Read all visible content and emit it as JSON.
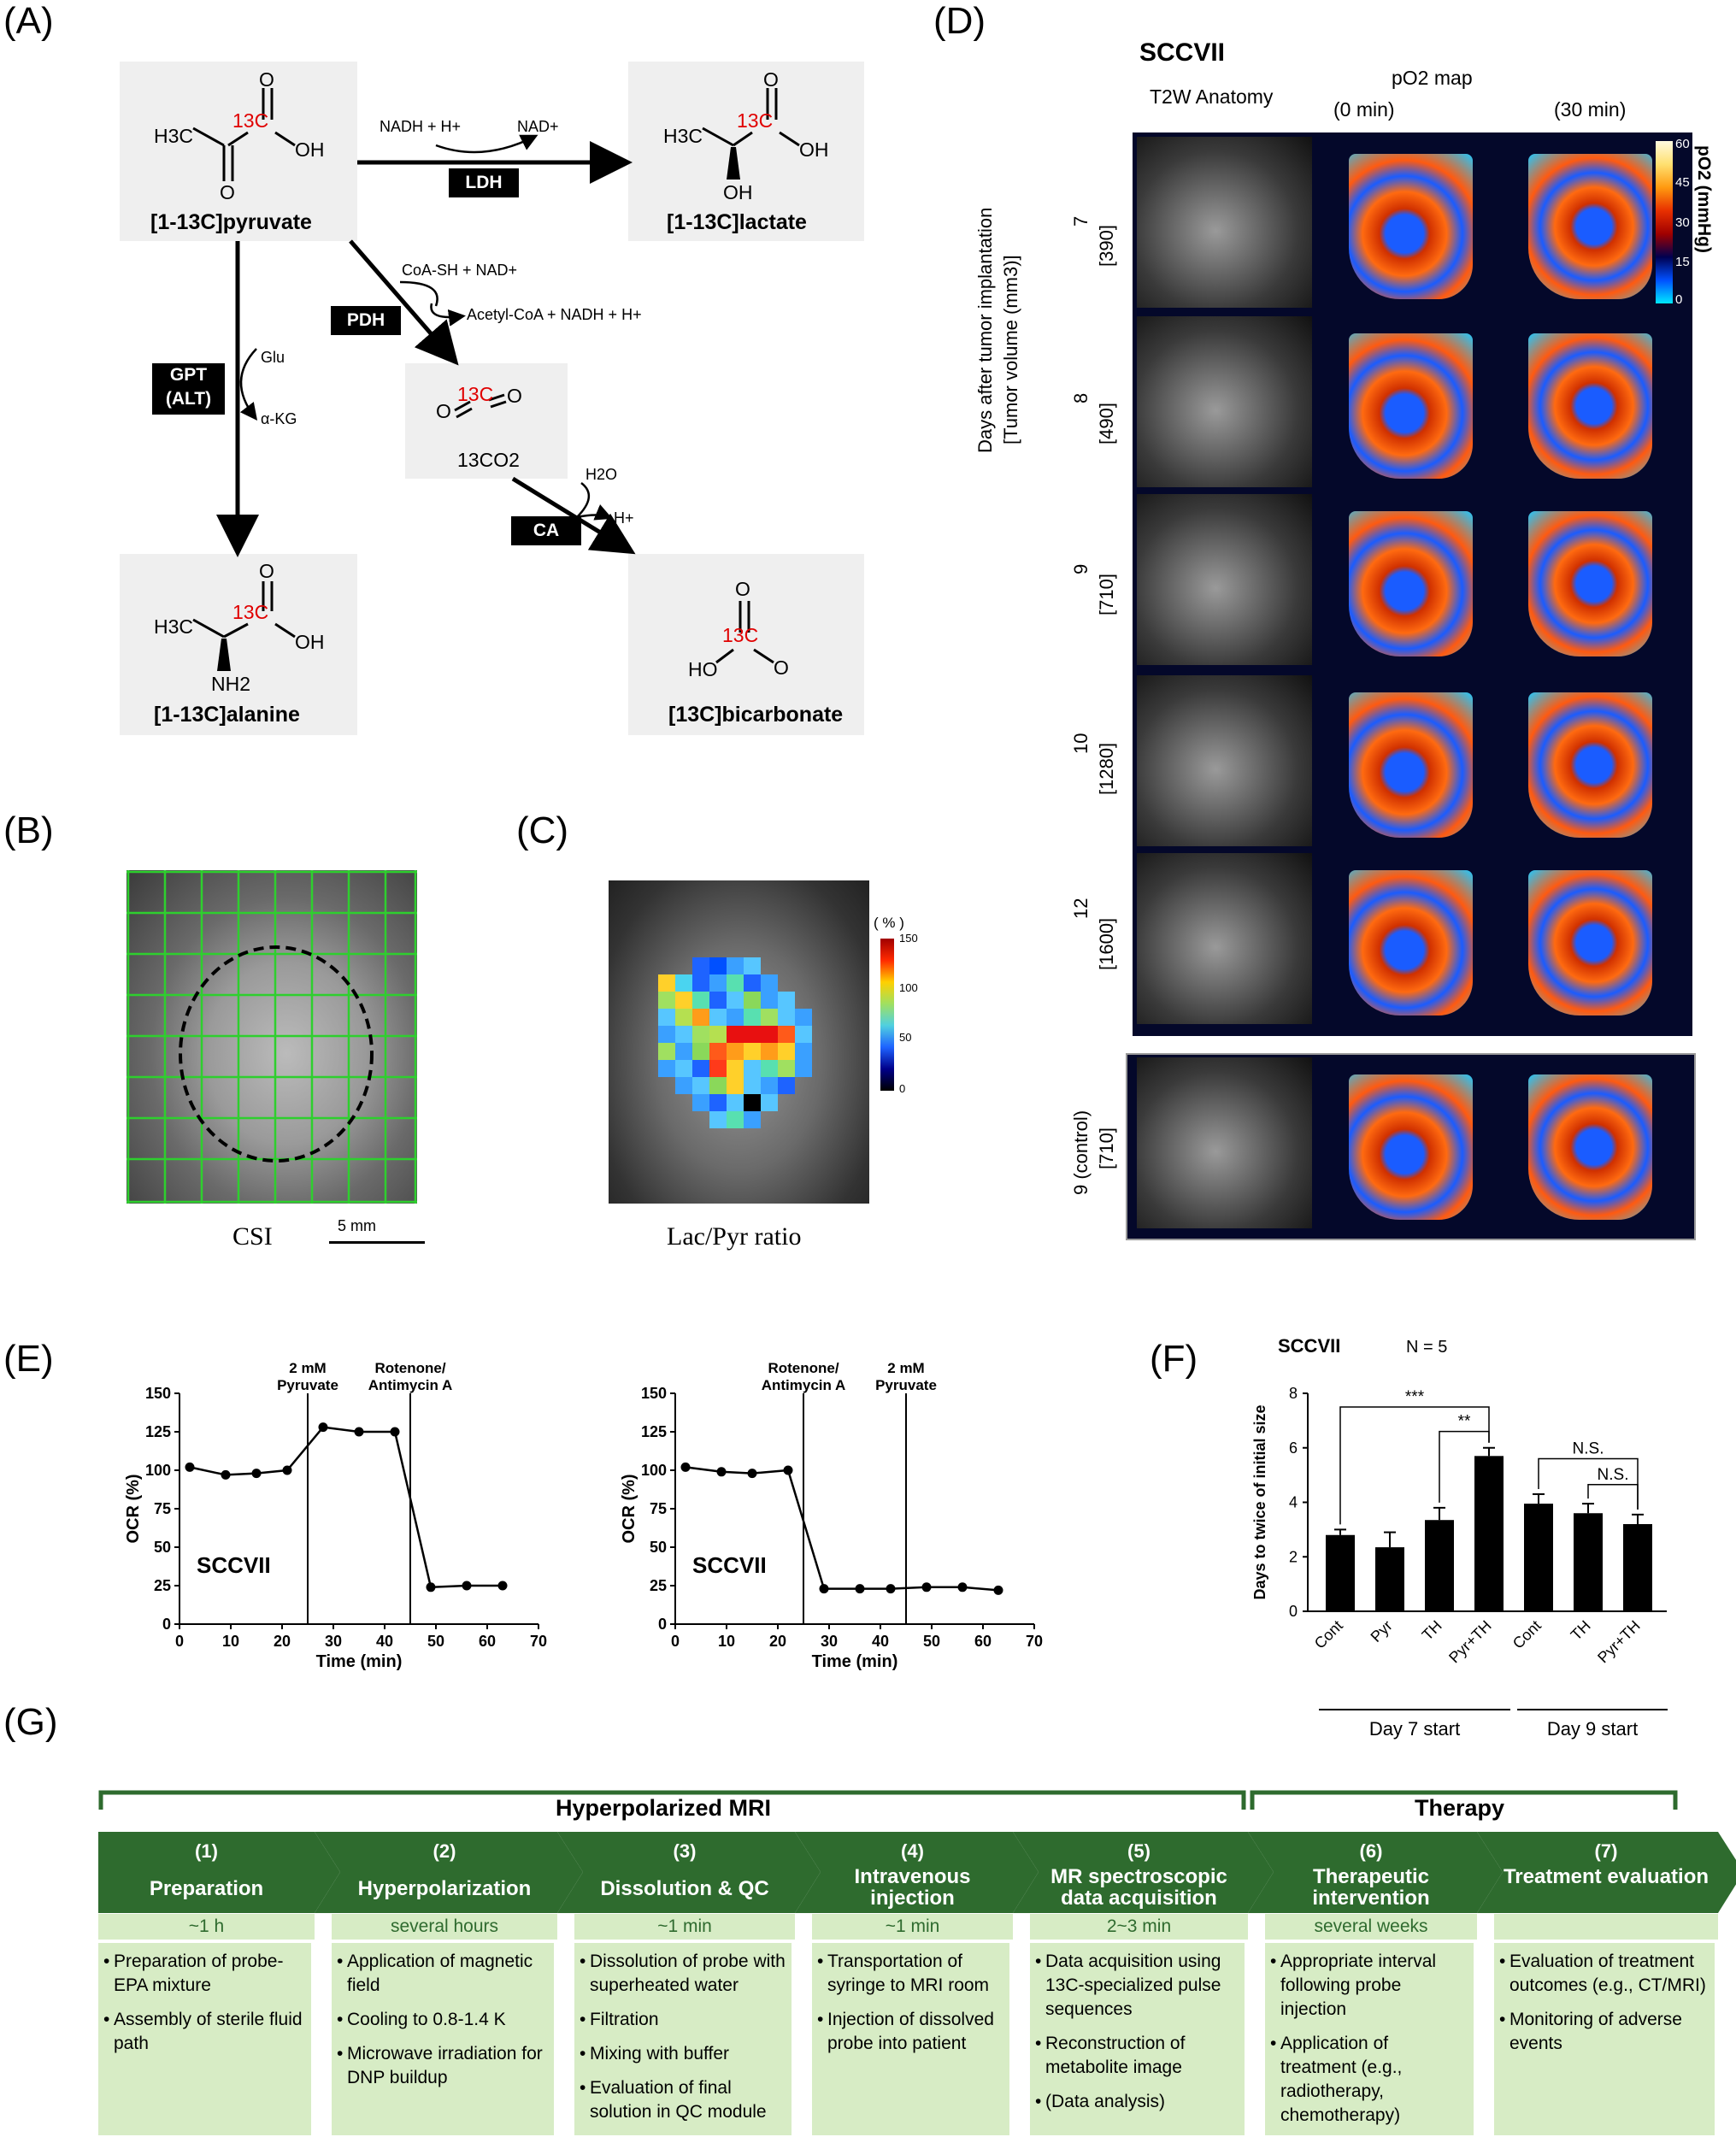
{
  "panels": {
    "a": "(A)",
    "b": "(B)",
    "c": "(C)",
    "d": "(D)",
    "e": "(E)",
    "f": "(F)",
    "g": "(G)"
  },
  "panel_a": {
    "pyruvate": "[1-13C]pyruvate",
    "lactate": "[1-13C]lactate",
    "alanine": "[1-13C]alanine",
    "bicarbonate": "[13C]bicarbonate",
    "co2": "13CO2",
    "ldh": "LDH",
    "pdh": "PDH",
    "gpt": "GPT",
    "alt": "(ALT)",
    "ca": "CA",
    "nadh_h": "NADH + H+",
    "nad": "NAD+",
    "coa": "CoA-SH + NAD+",
    "acetyl": "Acetyl-CoA + NADH + H+",
    "glu": "Glu",
    "akg": "α-KG",
    "h2o": "H2O",
    "hplus": "H+",
    "h3c": "H3C",
    "oh": "OH",
    "o": "O",
    "c13": "13C",
    "nh2": "NH2",
    "ho": "HO"
  },
  "panel_b": {
    "caption": "CSI",
    "scale": "5 mm"
  },
  "panel_c": {
    "caption": "Lac/Pyr ratio",
    "unit": "( % )",
    "ticks": [
      "150",
      "100",
      "50",
      "0"
    ]
  },
  "panel_d": {
    "title": "SCCVII",
    "col_anatomy": "T2W Anatomy",
    "col_po2": "pO2 map",
    "col_t0": "(0 min)",
    "col_t30": "(30 min)",
    "y_axis_1": "Days after tumor implantation",
    "y_axis_2": "[Tumor volume (mm3)]",
    "colorbar_label": "pO2 (mmHg)",
    "colorbar_ticks": [
      "60",
      "45",
      "30",
      "15",
      "0"
    ],
    "rows": [
      {
        "day": "7",
        "vol": "[390]"
      },
      {
        "day": "8",
        "vol": "[490]"
      },
      {
        "day": "9",
        "vol": "[710]"
      },
      {
        "day": "10",
        "vol": "[1280]"
      },
      {
        "day": "12",
        "vol": "[1600]"
      },
      {
        "day": "9 (control)",
        "vol": "[710]"
      }
    ]
  },
  "chart_data": [
    {
      "type": "line",
      "title": "SCCVII",
      "xlabel": "Time (min)",
      "ylabel": "OCR (%)",
      "xlim": [
        0,
        70
      ],
      "ylim": [
        0,
        150
      ],
      "xticks": [
        "0",
        "10",
        "20",
        "30",
        "40",
        "50",
        "60",
        "70"
      ],
      "yticks": [
        "0",
        "25",
        "50",
        "75",
        "100",
        "125",
        "150"
      ],
      "annotations": [
        {
          "x": 25,
          "text": "2 mM Pyruvate"
        },
        {
          "x": 45,
          "text": "Rotenone/ Antimycin A"
        }
      ],
      "series": [
        {
          "x": [
            2,
            9,
            15,
            21,
            28,
            35,
            42,
            49,
            56,
            63
          ],
          "y": [
            102,
            97,
            98,
            100,
            128,
            125,
            125,
            24,
            25,
            25
          ]
        }
      ]
    },
    {
      "type": "line",
      "title": "SCCVII",
      "xlabel": "Time (min)",
      "ylabel": "OCR (%)",
      "xlim": [
        0,
        70
      ],
      "ylim": [
        0,
        150
      ],
      "xticks": [
        "0",
        "10",
        "20",
        "30",
        "40",
        "50",
        "60",
        "70"
      ],
      "yticks": [
        "0",
        "25",
        "50",
        "75",
        "100",
        "125",
        "150"
      ],
      "annotations": [
        {
          "x": 25,
          "text": "Rotenone/ Antimycin A"
        },
        {
          "x": 45,
          "text": "2 mM Pyruvate"
        }
      ],
      "series": [
        {
          "x": [
            2,
            9,
            15,
            22,
            29,
            36,
            42,
            49,
            56,
            63
          ],
          "y": [
            102,
            99,
            98,
            100,
            23,
            23,
            23,
            24,
            24,
            22
          ]
        }
      ]
    },
    {
      "type": "bar",
      "title": "SCCVII",
      "subtitle": "N = 5",
      "ylabel": "Days to twice of initial size",
      "ylim": [
        0,
        8
      ],
      "yticks": [
        "0",
        "2",
        "4",
        "6",
        "8"
      ],
      "categories": [
        "Cont",
        "Pyr",
        "TH",
        "Pyr+TH",
        "Cont",
        "TH",
        "Pyr+TH"
      ],
      "values": [
        2.8,
        2.35,
        3.35,
        5.7,
        3.95,
        3.6,
        3.2
      ],
      "errors": [
        0.2,
        0.55,
        0.45,
        0.3,
        0.35,
        0.35,
        0.35
      ],
      "groups": [
        {
          "label": "Day 7 start"
        },
        {
          "label": "Day 9 start"
        }
      ],
      "significance": [
        "***",
        "**",
        "N.S.",
        "N.S."
      ]
    }
  ],
  "panel_g": {
    "header_mri": "Hyperpolarized MRI",
    "header_therapy": "Therapy",
    "steps": [
      {
        "num": "(1)",
        "title": "Preparation",
        "time": "~1 h",
        "items": [
          "Preparation of probe-EPA mixture",
          "Assembly of sterile fluid path"
        ]
      },
      {
        "num": "(2)",
        "title": "Hyperpolarization",
        "time": "several hours",
        "items": [
          "Application of magnetic field",
          "Cooling to 0.8-1.4 K",
          "Microwave irradiation for DNP buildup"
        ]
      },
      {
        "num": "(3)",
        "title": "Dissolution & QC",
        "time": "~1 min",
        "items": [
          "Dissolution of probe with superheated water",
          "Filtration",
          "Mixing with buffer",
          "Evaluation of final solution in QC module"
        ]
      },
      {
        "num": "(4)",
        "title": "Intravenous injection",
        "time": "~1 min",
        "items": [
          "Transportation of syringe to MRI room",
          "Injection of dissolved probe into patient"
        ]
      },
      {
        "num": "(5)",
        "title": "MR spectroscopic data acquisition",
        "time": "2~3 min",
        "items": [
          "Data acquisition using 13C-specialized pulse sequences",
          "Reconstruction of metabolite image",
          "(Data analysis)"
        ]
      },
      {
        "num": "(6)",
        "title": "Therapeutic intervention",
        "time": "several weeks",
        "items": [
          "Appropriate interval following probe injection",
          "Application of treatment (e.g., radiotherapy, chemotherapy)"
        ]
      },
      {
        "num": "(7)",
        "title": "Treatment evaluation",
        "time": "",
        "items": [
          "Evaluation of treatment outcomes (e.g., CT/MRI)",
          "Monitoring of adverse events"
        ]
      }
    ]
  },
  "colors": {
    "accent_green": "#2e6b2e",
    "light_green": "#d7ecc5",
    "red_c13": "#e00000"
  }
}
